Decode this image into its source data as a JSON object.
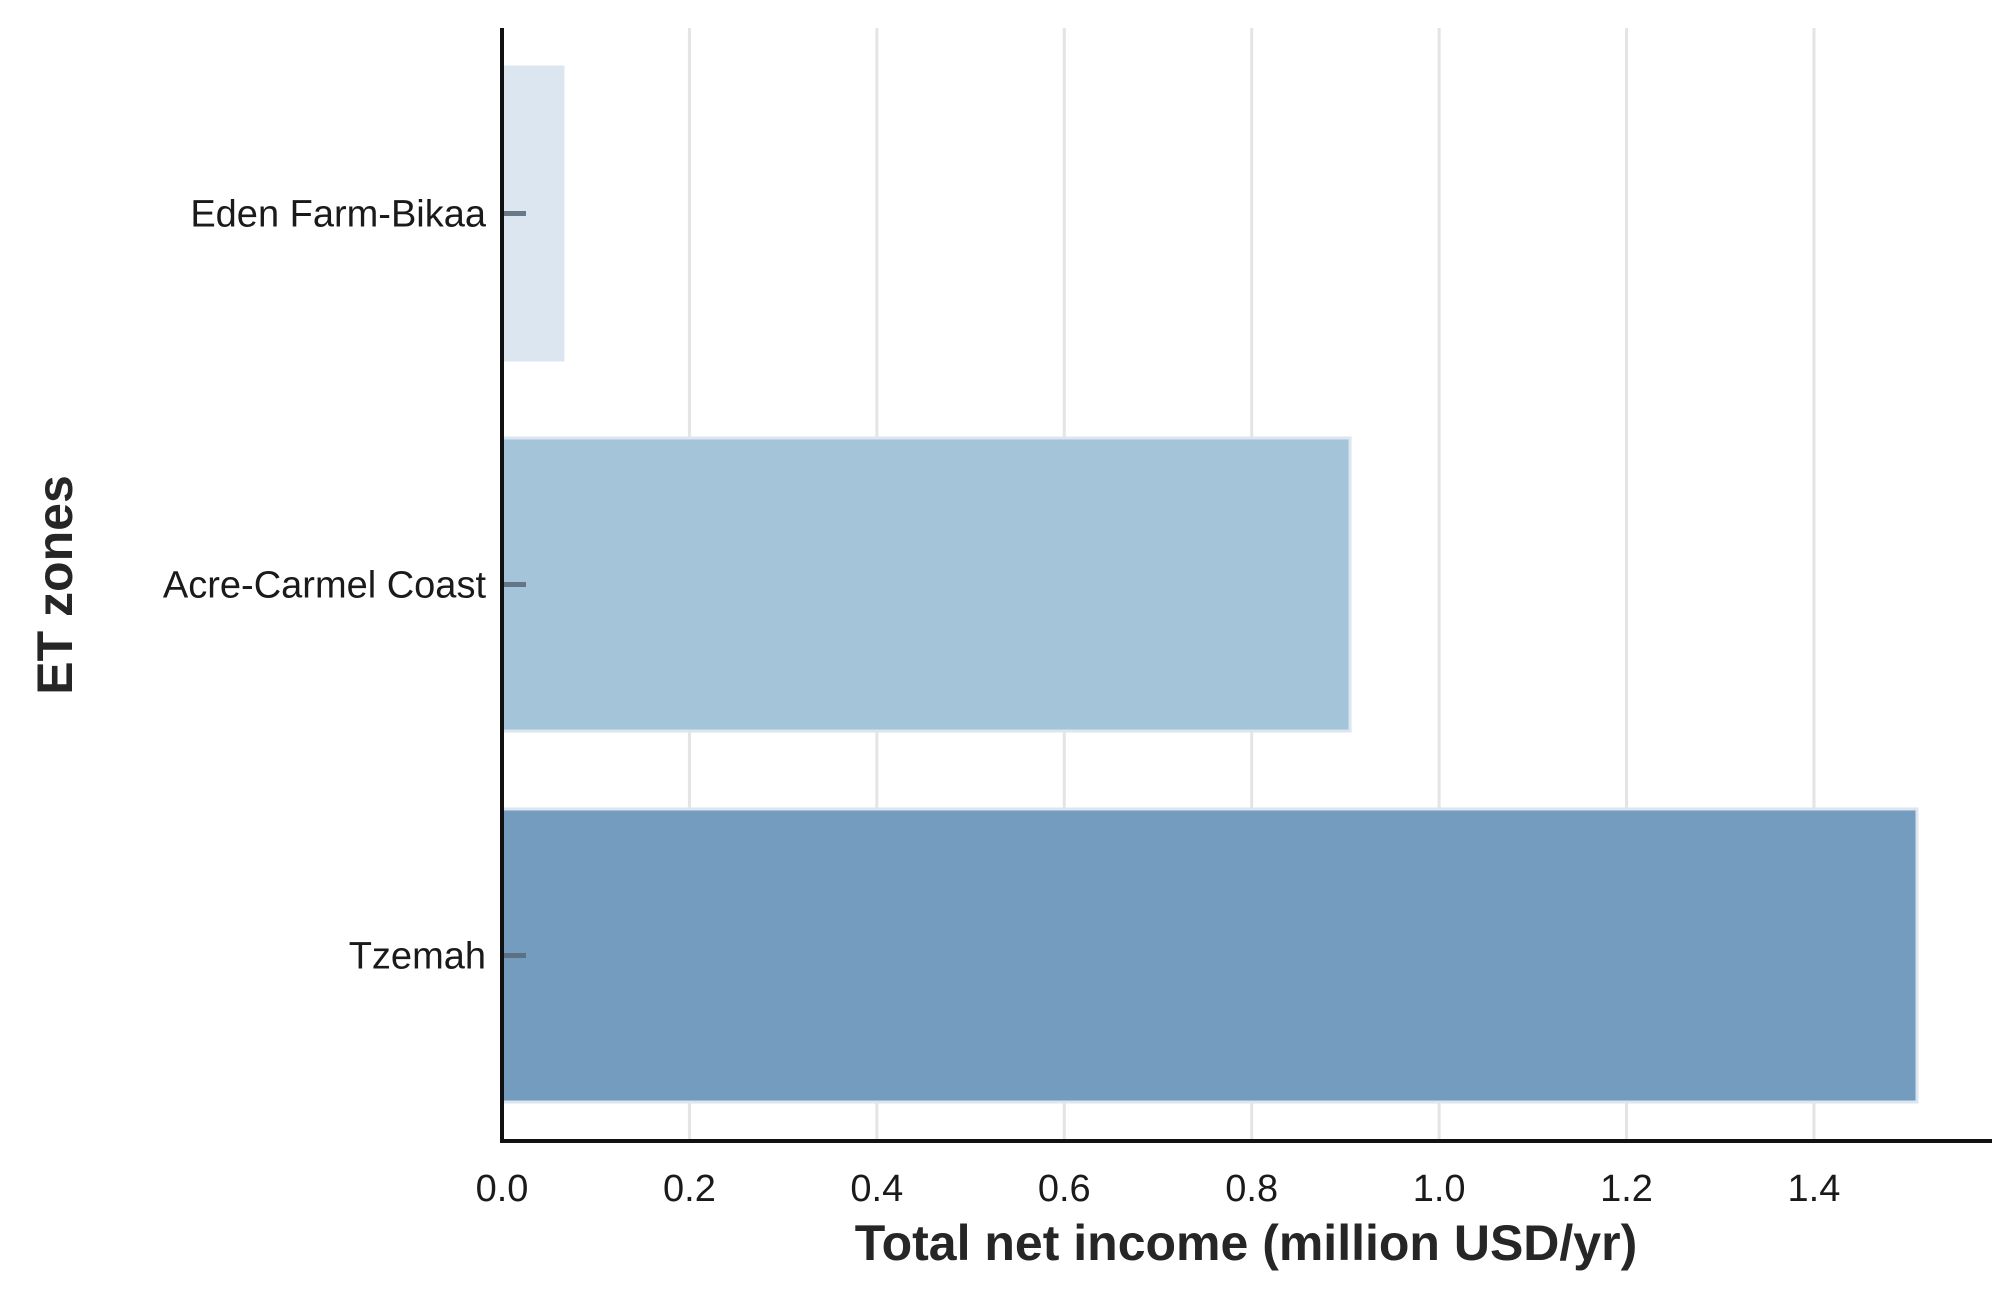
{
  "chart_data": {
    "type": "bar",
    "orientation": "horizontal",
    "categories": [
      "Eden Farm-Bikaa",
      "Acre-Carmel Coast",
      "Tzemah"
    ],
    "values": [
      0.065,
      0.905,
      1.51
    ],
    "colors": [
      "#dae5f0",
      "#a1c3d8",
      "#7099bd"
    ],
    "title": "",
    "xlabel": "Total net income (million USD/yr)",
    "ylabel": "ET zones",
    "xlim": [
      0,
      1.59
    ],
    "xticks": [
      0.0,
      0.2,
      0.4,
      0.6,
      0.8,
      1.0,
      1.2,
      1.4
    ],
    "xtick_labels": [
      "0.0",
      "0.2",
      "0.4",
      "0.6",
      "0.8",
      "1.0",
      "1.2",
      "1.4"
    ],
    "grid": "vertical",
    "legend": "none"
  }
}
